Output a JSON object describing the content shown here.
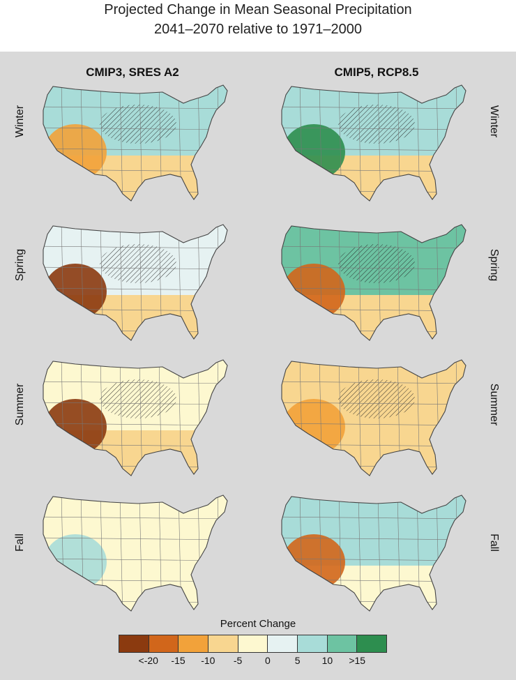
{
  "title_line1": "Projected Change in Mean Seasonal Precipitation",
  "title_line2": "2041–2070 relative to 1971–2000",
  "columns": [
    "CMIP3, SRES A2",
    "CMIP5, RCP8.5"
  ],
  "seasons": [
    "Winter",
    "Spring",
    "Summer",
    "Fall"
  ],
  "legend": {
    "title": "Percent Change",
    "tick_labels": [
      "<-20",
      "-15",
      "-10",
      "-5",
      "0",
      "5",
      "10",
      ">15"
    ],
    "colors": [
      "#8b3a0f",
      "#d1661b",
      "#f2a23a",
      "#f8d690",
      "#fdf8d0",
      "#e6f2f2",
      "#a8dcd8",
      "#6dc3a2",
      "#2d8e4f"
    ]
  },
  "maps": {
    "cmip3_winter": {
      "dominant": "#a8dcd8",
      "south": "#f8d690",
      "accent": "#f2a23a",
      "hatch": true
    },
    "cmip5_winter": {
      "dominant": "#a8dcd8",
      "south": "#f8d690",
      "accent": "#2d8e4f",
      "hatch": true
    },
    "cmip3_spring": {
      "dominant": "#e6f2f2",
      "south": "#f8d690",
      "accent": "#8b3a0f",
      "hatch": true
    },
    "cmip5_spring": {
      "dominant": "#6dc3a2",
      "south": "#f8d690",
      "accent": "#d1661b",
      "hatch": true
    },
    "cmip3_summer": {
      "dominant": "#fdf8d0",
      "south": "#f8d690",
      "accent": "#8b3a0f",
      "hatch": true
    },
    "cmip5_summer": {
      "dominant": "#f8d690",
      "south": "#f8d690",
      "accent": "#f2a23a",
      "hatch": true
    },
    "cmip3_fall": {
      "dominant": "#fdf8d0",
      "south": "#fdf8d0",
      "accent": "#a8dcd8",
      "hatch": false
    },
    "cmip5_fall": {
      "dominant": "#a8dcd8",
      "south": "#fdf8d0",
      "accent": "#d1661b",
      "hatch": false
    }
  }
}
